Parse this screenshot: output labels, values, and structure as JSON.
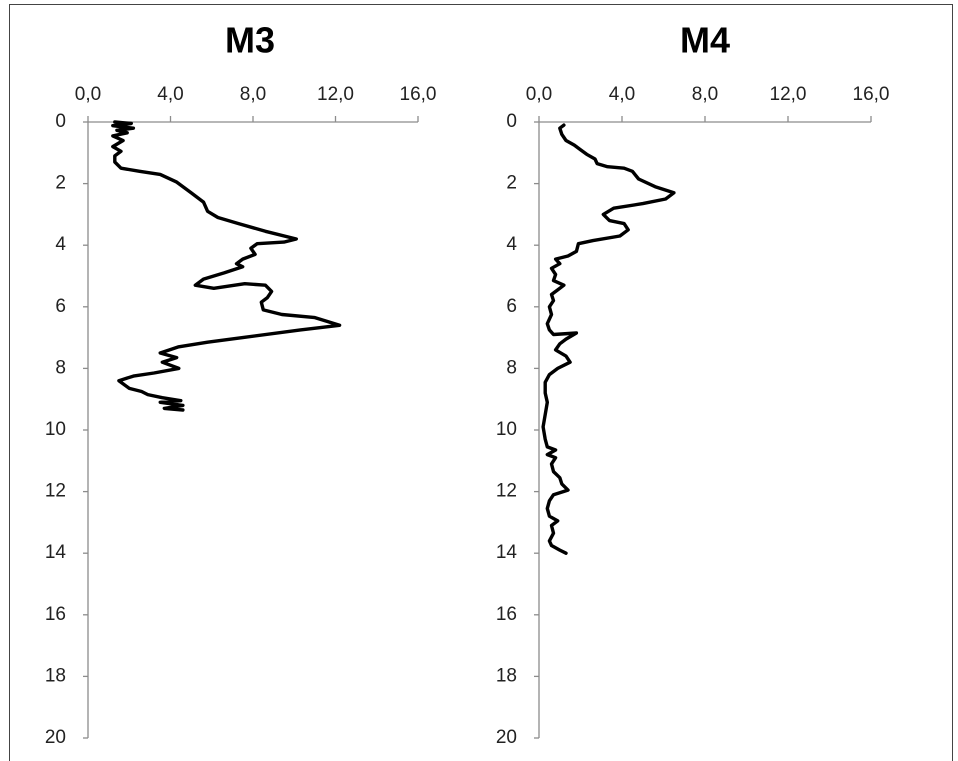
{
  "chart_data": [
    {
      "type": "line",
      "title": "M3",
      "xlabel": "",
      "ylabel": "",
      "xlim": [
        0,
        16
      ],
      "ylim": [
        0,
        20
      ],
      "y_reversed": true,
      "x_axis_position": "top",
      "grid": false,
      "x_ticks": [
        "0,0",
        "4,0",
        "8,0",
        "12,0",
        "16,0"
      ],
      "y_ticks": [
        "0",
        "2",
        "4",
        "6",
        "8",
        "10",
        "12",
        "14",
        "16",
        "18",
        "20"
      ],
      "series": [
        {
          "points": [
            [
              1.3,
              0.0
            ],
            [
              2.1,
              0.05
            ],
            [
              1.2,
              0.12
            ],
            [
              2.2,
              0.2
            ],
            [
              1.4,
              0.27
            ],
            [
              1.9,
              0.35
            ],
            [
              1.2,
              0.45
            ],
            [
              1.7,
              0.6
            ],
            [
              1.2,
              0.8
            ],
            [
              1.6,
              0.95
            ],
            [
              1.3,
              1.1
            ],
            [
              1.3,
              1.3
            ],
            [
              1.6,
              1.5
            ],
            [
              2.5,
              1.6
            ],
            [
              3.5,
              1.7
            ],
            [
              4.3,
              1.95
            ],
            [
              5.0,
              2.3
            ],
            [
              5.6,
              2.6
            ],
            [
              5.8,
              2.9
            ],
            [
              6.3,
              3.1
            ],
            [
              7.3,
              3.3
            ],
            [
              8.6,
              3.55
            ],
            [
              10.1,
              3.8
            ],
            [
              9.5,
              3.9
            ],
            [
              8.2,
              3.95
            ],
            [
              7.9,
              4.1
            ],
            [
              8.1,
              4.3
            ],
            [
              7.5,
              4.45
            ],
            [
              7.2,
              4.6
            ],
            [
              7.5,
              4.7
            ],
            [
              6.6,
              4.9
            ],
            [
              5.6,
              5.1
            ],
            [
              5.2,
              5.3
            ],
            [
              6.1,
              5.4
            ],
            [
              7.6,
              5.25
            ],
            [
              8.6,
              5.3
            ],
            [
              8.9,
              5.5
            ],
            [
              8.7,
              5.7
            ],
            [
              8.4,
              5.85
            ],
            [
              8.5,
              6.1
            ],
            [
              9.4,
              6.25
            ],
            [
              11.0,
              6.35
            ],
            [
              12.2,
              6.6
            ],
            [
              10.3,
              6.75
            ],
            [
              7.5,
              7.0
            ],
            [
              5.8,
              7.15
            ],
            [
              4.4,
              7.3
            ],
            [
              3.5,
              7.5
            ],
            [
              4.3,
              7.65
            ],
            [
              3.6,
              7.8
            ],
            [
              4.4,
              8.0
            ],
            [
              3.2,
              8.15
            ],
            [
              2.2,
              8.25
            ],
            [
              1.5,
              8.4
            ],
            [
              2.0,
              8.65
            ],
            [
              2.6,
              8.75
            ],
            [
              2.9,
              8.85
            ],
            [
              3.6,
              8.95
            ],
            [
              4.5,
              9.05
            ],
            [
              3.5,
              9.1
            ],
            [
              4.6,
              9.2
            ],
            [
              3.7,
              9.3
            ],
            [
              4.6,
              9.35
            ]
          ]
        }
      ]
    },
    {
      "type": "line",
      "title": "M4",
      "xlabel": "",
      "ylabel": "",
      "xlim": [
        0,
        16
      ],
      "ylim": [
        0,
        20
      ],
      "y_reversed": true,
      "x_axis_position": "top",
      "grid": false,
      "x_ticks": [
        "0,0",
        "4,0",
        "8,0",
        "12,0",
        "16,0"
      ],
      "y_ticks": [
        "0",
        "2",
        "4",
        "6",
        "8",
        "10",
        "12",
        "14",
        "16",
        "18",
        "20"
      ],
      "series": [
        {
          "points": [
            [
              1.2,
              0.1
            ],
            [
              1.0,
              0.2
            ],
            [
              1.1,
              0.4
            ],
            [
              1.3,
              0.6
            ],
            [
              1.7,
              0.75
            ],
            [
              2.0,
              0.9
            ],
            [
              2.3,
              1.05
            ],
            [
              2.7,
              1.2
            ],
            [
              2.8,
              1.35
            ],
            [
              3.3,
              1.45
            ],
            [
              4.1,
              1.5
            ],
            [
              4.5,
              1.6
            ],
            [
              4.8,
              1.85
            ],
            [
              5.6,
              2.1
            ],
            [
              6.5,
              2.3
            ],
            [
              6.1,
              2.5
            ],
            [
              5.0,
              2.65
            ],
            [
              3.6,
              2.8
            ],
            [
              3.1,
              3.0
            ],
            [
              3.4,
              3.2
            ],
            [
              4.1,
              3.3
            ],
            [
              4.3,
              3.5
            ],
            [
              3.9,
              3.7
            ],
            [
              2.6,
              3.85
            ],
            [
              1.9,
              3.95
            ],
            [
              1.8,
              4.2
            ],
            [
              1.4,
              4.35
            ],
            [
              0.8,
              4.45
            ],
            [
              1.0,
              4.6
            ],
            [
              0.6,
              4.75
            ],
            [
              0.8,
              4.95
            ],
            [
              0.7,
              5.15
            ],
            [
              1.2,
              5.3
            ],
            [
              0.9,
              5.45
            ],
            [
              0.6,
              5.6
            ],
            [
              0.7,
              5.8
            ],
            [
              0.5,
              6.0
            ],
            [
              0.6,
              6.25
            ],
            [
              0.4,
              6.55
            ],
            [
              0.5,
              6.75
            ],
            [
              0.7,
              6.9
            ],
            [
              1.8,
              6.85
            ],
            [
              1.3,
              7.05
            ],
            [
              1.0,
              7.2
            ],
            [
              0.8,
              7.4
            ],
            [
              1.3,
              7.6
            ],
            [
              1.5,
              7.8
            ],
            [
              0.9,
              8.0
            ],
            [
              0.5,
              8.2
            ],
            [
              0.3,
              8.45
            ],
            [
              0.3,
              8.8
            ],
            [
              0.4,
              9.1
            ],
            [
              0.3,
              9.5
            ],
            [
              0.2,
              9.9
            ],
            [
              0.3,
              10.3
            ],
            [
              0.4,
              10.55
            ],
            [
              0.8,
              10.65
            ],
            [
              0.4,
              10.8
            ],
            [
              0.8,
              10.9
            ],
            [
              0.6,
              11.1
            ],
            [
              0.7,
              11.35
            ],
            [
              1.0,
              11.55
            ],
            [
              1.1,
              11.75
            ],
            [
              1.4,
              11.95
            ],
            [
              0.7,
              12.1
            ],
            [
              0.5,
              12.3
            ],
            [
              0.4,
              12.55
            ],
            [
              0.5,
              12.8
            ],
            [
              0.9,
              12.95
            ],
            [
              0.6,
              13.1
            ],
            [
              0.7,
              13.35
            ],
            [
              0.5,
              13.6
            ],
            [
              0.6,
              13.75
            ],
            [
              1.0,
              13.9
            ],
            [
              1.3,
              14.0
            ]
          ]
        }
      ]
    }
  ]
}
